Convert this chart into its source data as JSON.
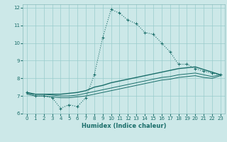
{
  "xlabel": "Humidex (Indice chaleur)",
  "bg_color": "#cce8e8",
  "grid_color": "#99cccc",
  "line_color": "#1a6e6a",
  "xlim": [
    -0.5,
    23.5
  ],
  "ylim": [
    6,
    12.2
  ],
  "yticks": [
    6,
    7,
    8,
    9,
    10,
    11,
    12
  ],
  "xticks": [
    0,
    1,
    2,
    3,
    4,
    5,
    6,
    7,
    8,
    9,
    10,
    11,
    12,
    13,
    14,
    15,
    16,
    17,
    18,
    19,
    20,
    21,
    22,
    23
  ],
  "series1_x": [
    0,
    1,
    2,
    3,
    4,
    5,
    6,
    7,
    8,
    9,
    10,
    11,
    12,
    13,
    14,
    15,
    16,
    17,
    18,
    19,
    20,
    21,
    22,
    23
  ],
  "series1_y": [
    7.2,
    7.0,
    7.0,
    6.9,
    6.3,
    6.5,
    6.4,
    6.9,
    8.2,
    10.3,
    11.9,
    11.7,
    11.3,
    11.1,
    10.6,
    10.5,
    10.0,
    9.5,
    8.8,
    8.8,
    8.55,
    8.4,
    8.3,
    8.2
  ],
  "series2_x": [
    0,
    1,
    2,
    3,
    4,
    5,
    6,
    7,
    8,
    9,
    10,
    11,
    12,
    13,
    14,
    15,
    16,
    17,
    18,
    19,
    20,
    21,
    22,
    23
  ],
  "series2_y": [
    7.2,
    7.1,
    7.1,
    7.1,
    7.1,
    7.15,
    7.2,
    7.3,
    7.5,
    7.6,
    7.75,
    7.85,
    7.95,
    8.05,
    8.15,
    8.25,
    8.35,
    8.45,
    8.55,
    8.6,
    8.65,
    8.5,
    8.35,
    8.2
  ],
  "series3_x": [
    0,
    1,
    2,
    3,
    4,
    5,
    6,
    7,
    8,
    9,
    10,
    11,
    12,
    13,
    14,
    15,
    16,
    17,
    18,
    19,
    20,
    21,
    22,
    23
  ],
  "series3_y": [
    7.15,
    7.1,
    7.1,
    7.05,
    7.0,
    7.0,
    7.05,
    7.15,
    7.25,
    7.35,
    7.45,
    7.55,
    7.65,
    7.75,
    7.85,
    7.95,
    8.05,
    8.1,
    8.2,
    8.25,
    8.3,
    8.2,
    8.1,
    8.2
  ],
  "series4_x": [
    0,
    1,
    2,
    3,
    4,
    5,
    6,
    7,
    8,
    9,
    10,
    11,
    12,
    13,
    14,
    15,
    16,
    17,
    18,
    19,
    20,
    21,
    22,
    23
  ],
  "series4_y": [
    7.1,
    7.0,
    7.0,
    6.95,
    6.9,
    6.9,
    6.95,
    7.0,
    7.1,
    7.2,
    7.3,
    7.4,
    7.5,
    7.6,
    7.7,
    7.8,
    7.9,
    7.95,
    8.05,
    8.1,
    8.15,
    8.05,
    8.0,
    8.15
  ]
}
